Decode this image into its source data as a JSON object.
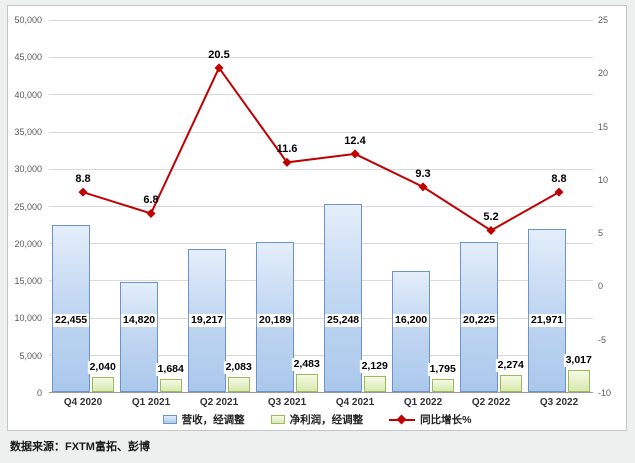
{
  "source_note": "数据来源：FXTM富拓、彭博",
  "chart_data": {
    "type": "combo-bar-line",
    "title": "",
    "categories": [
      "Q4 2020",
      "Q1 2021",
      "Q2 2021",
      "Q3 2021",
      "Q4 2021",
      "Q1 2022",
      "Q2 2022",
      "Q3 2022"
    ],
    "series": [
      {
        "name": "营收，经调整",
        "type": "bar",
        "axis": "left",
        "values": [
          22455,
          14820,
          19217,
          20189,
          25248,
          16200,
          20225,
          21971
        ],
        "labels": [
          "22,455",
          "14,820",
          "19,217",
          "20,189",
          "25,248",
          "16,200",
          "20,225",
          "21,971"
        ]
      },
      {
        "name": "净利润，经调整",
        "type": "bar",
        "axis": "left",
        "values": [
          2040,
          1684,
          2083,
          2483,
          2129,
          1795,
          2274,
          3017
        ],
        "labels": [
          "2,040",
          "1,684",
          "2,083",
          "2,483",
          "2,129",
          "1,795",
          "2,274",
          "3,017"
        ]
      },
      {
        "name": "同比增长%",
        "type": "line",
        "axis": "right",
        "values": [
          8.8,
          6.8,
          20.5,
          11.6,
          12.4,
          9.3,
          5.2,
          8.8
        ],
        "labels": [
          "8.8",
          "6.8",
          "20.5",
          "11.6",
          "12.4",
          "9.3",
          "5.2",
          "8.8"
        ]
      }
    ],
    "left_axis": {
      "min": 0,
      "max": 50000,
      "step": 5000,
      "tick_labels_top_to_bottom": [
        "50,000",
        "45,000",
        "40,000",
        "35,000",
        "30,000",
        "25,000",
        "20,000",
        "15,000",
        "10,000",
        "5,000",
        "0"
      ]
    },
    "right_axis": {
      "min": -10,
      "max": 25,
      "step": 5,
      "tick_labels_top_to_bottom": [
        "25",
        "20",
        "15",
        "10",
        "5",
        "0",
        "-5",
        "-10"
      ]
    },
    "legend_position": "bottom",
    "grid": true,
    "colors": {
      "revenue_border": "#6d94c9",
      "revenue_fill": "#c3d8f2",
      "profit_border": "#9bbb59",
      "profit_fill": "#e3f0c4",
      "line": "#c00000",
      "gridline": "#d9d9d9"
    }
  }
}
